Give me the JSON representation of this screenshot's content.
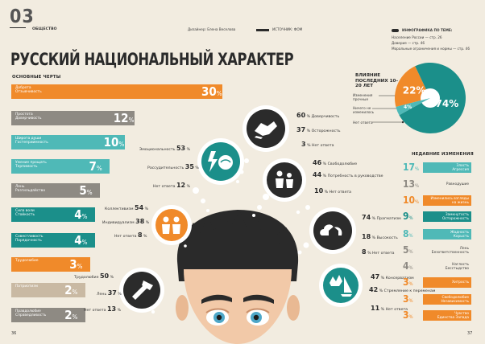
{
  "header": {
    "issue": "03",
    "section": "ОБЩЕСТВО",
    "designer": "Дизайнер: Елена Веселова",
    "source": "ИСТОЧНИК: ФОМ"
  },
  "title": "РУССКИЙ НАЦИОНАЛЬНЫЙ ХАРАКТЕР",
  "traits_title": "ОСНОВНЫЕ ЧЕРТЫ",
  "traits": [
    {
      "label_1": "Доброта",
      "label_2": "Отзывчивость",
      "value": "30",
      "pct": "%",
      "color": "#f08a2a"
    },
    {
      "label_1": "Простота",
      "label_2": "Доверчивость",
      "value": "12",
      "pct": "%",
      "color": "#8e8a83"
    },
    {
      "label_1": "Широта души",
      "label_2": "Гостеприимность",
      "value": "10",
      "pct": "%",
      "color": "#4fb9b7"
    },
    {
      "label_1": "Умение прощать",
      "label_2": "Терпимость",
      "value": "7",
      "pct": "%",
      "color": "#4fb9b7"
    },
    {
      "label_1": "Лень",
      "label_2": "Разгильдяйство",
      "value": "5",
      "pct": "%",
      "color": "#8e8a83"
    },
    {
      "label_1": "Сила воли",
      "label_2": "Стойкость",
      "value": "4",
      "pct": "%",
      "color": "#1b8f8a"
    },
    {
      "label_1": "Совестливость",
      "label_2": "Порядочность",
      "value": "4",
      "pct": "%",
      "color": "#1b8f8a"
    },
    {
      "label_1": "Трудолюбие",
      "label_2": "",
      "value": "3",
      "pct": "%",
      "color": "#f08a2a"
    },
    {
      "label_1": "Патриотизм",
      "label_2": "",
      "value": "2",
      "pct": "%",
      "color": "#c9b9a3"
    },
    {
      "label_1": "Правдолюбие",
      "label_2": "Справедливость",
      "value": "2",
      "pct": "%",
      "color": "#8e8a83"
    }
  ],
  "bubbles": {
    "b1": {
      "items": [
        {
          "v": "60",
          "u": "%",
          "t": "Доверчивость"
        },
        {
          "v": "37",
          "u": "%",
          "t": "Осторожность"
        },
        {
          "v": "3",
          "u": "%",
          "t": "Нет ответа"
        }
      ]
    },
    "b2": {
      "items": [
        {
          "v": "53",
          "u": "%",
          "t": "Эмоциональность"
        },
        {
          "v": "35",
          "u": "%",
          "t": "Рассудительность"
        },
        {
          "v": "12",
          "u": "%",
          "t": "Нет ответа"
        }
      ]
    },
    "b3": {
      "items": [
        {
          "v": "46",
          "u": "%",
          "t": "Свободолюбие"
        },
        {
          "v": "44",
          "u": "%",
          "t": "Потребность в руководстве"
        },
        {
          "v": "10",
          "u": "%",
          "t": "Нет ответа"
        }
      ]
    },
    "b4": {
      "items": [
        {
          "v": "54",
          "u": "%",
          "t": "Коллективизм"
        },
        {
          "v": "38",
          "u": "%",
          "t": "Индивидуализм"
        },
        {
          "v": "8",
          "u": "%",
          "t": "Нет ответа"
        }
      ]
    },
    "b5": {
      "items": [
        {
          "v": "74",
          "u": "%",
          "t": "Прагматизм"
        },
        {
          "v": "18",
          "u": "%",
          "t": "Высокость"
        },
        {
          "v": "8",
          "u": "%",
          "t": "Нет ответа"
        }
      ]
    },
    "b6": {
      "items": [
        {
          "v": "50",
          "u": "%",
          "t": "Трудолюбие"
        },
        {
          "v": "37",
          "u": "%",
          "t": "Лень"
        },
        {
          "v": "13",
          "u": "%",
          "t": "Нет ответа"
        }
      ]
    },
    "b7": {
      "items": [
        {
          "v": "47",
          "u": "%",
          "t": "Консерватизм"
        },
        {
          "v": "42",
          "u": "%",
          "t": "Стремление к переменам"
        },
        {
          "v": "11",
          "u": "%",
          "t": "Нет ответа"
        }
      ]
    }
  },
  "topic": {
    "heading": "ИНФОГРАФИКА ПО ТЕМЕ:",
    "lines": [
      "Население России — стр. 26",
      "Доверие — стр. 46",
      "Моральные ограничения и нормы — стр. 46"
    ]
  },
  "influence": {
    "title": "ВЛИЯНИЕ ПОСЛЕДНИХ 10–20 ЛЕТ",
    "legend": [
      "Изменения прочные",
      "Ничего не изменилось",
      "Нет ответа"
    ],
    "chart_data": {
      "type": "pie",
      "labels": [
        "Изменения прочные",
        "Ничего не изменилось",
        "Нет ответа"
      ],
      "values": [
        22,
        74,
        4
      ],
      "value_labels": [
        "22%",
        "74%",
        "4%"
      ],
      "colors": [
        "#f08a2a",
        "#1b8f8a",
        "#4fb9b7"
      ]
    }
  },
  "changes": {
    "title": "НЕДАВНИЕ ИЗМЕНЕНИЯ",
    "items": [
      {
        "v": "17",
        "u": "%",
        "t1": "Злость",
        "t2": "Агрессия",
        "color": "#4fb9b7"
      },
      {
        "v": "13",
        "u": "%",
        "t1": "Равнодушие",
        "t2": "",
        "color": "#8e8a83"
      },
      {
        "v": "10",
        "u": "%",
        "t1": "Изменились взгляды",
        "t2": "на жизнь",
        "color": "#f08a2a"
      },
      {
        "v": "9",
        "u": "%",
        "t1": "Замкнутость",
        "t2": "Осторожность",
        "color": "#1b8f8a"
      },
      {
        "v": "8",
        "u": "%",
        "t1": "Жадность",
        "t2": "Корысть",
        "color": "#4fb9b7"
      },
      {
        "v": "5",
        "u": "%",
        "t1": "Лень",
        "t2": "Безответственность",
        "color": "#8e8a83"
      },
      {
        "v": "4",
        "u": "%",
        "t1": "Наглость",
        "t2": "Бесстыдство",
        "color": "#8e8a83"
      },
      {
        "v": "3",
        "u": "%",
        "t1": "Хитрость",
        "t2": "",
        "color": "#f08a2a"
      },
      {
        "v": "3",
        "u": "%",
        "t1": "Свободолюбие",
        "t2": "Независимость",
        "color": "#f08a2a"
      },
      {
        "v": "3",
        "u": "%",
        "t1": "Чувство",
        "t2": "Единства Запада",
        "color": "#f08a2a"
      }
    ]
  },
  "footer": {
    "left": "36",
    "right": "37"
  }
}
